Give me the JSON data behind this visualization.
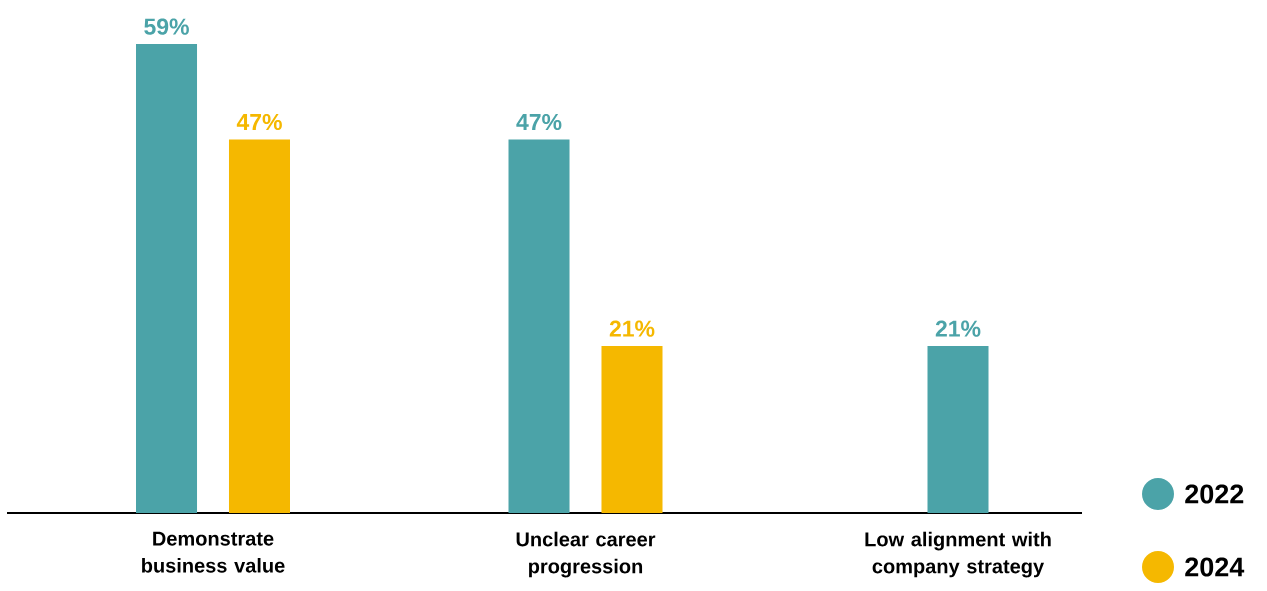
{
  "chart_data": {
    "type": "bar",
    "categories": [
      "Demonstrate business value",
      "Unclear career progression",
      "Low alignment with company strategy"
    ],
    "series": [
      {
        "name": "2022",
        "color": "#4ba3a8",
        "values": [
          59,
          47,
          21
        ],
        "value_labels": [
          "59%",
          "47%",
          "21%"
        ]
      },
      {
        "name": "2024",
        "color": "#f5b800",
        "values": [
          47,
          21,
          null
        ],
        "value_labels": [
          "47%",
          "21%",
          null
        ]
      }
    ],
    "legend": "bottom right"
  }
}
